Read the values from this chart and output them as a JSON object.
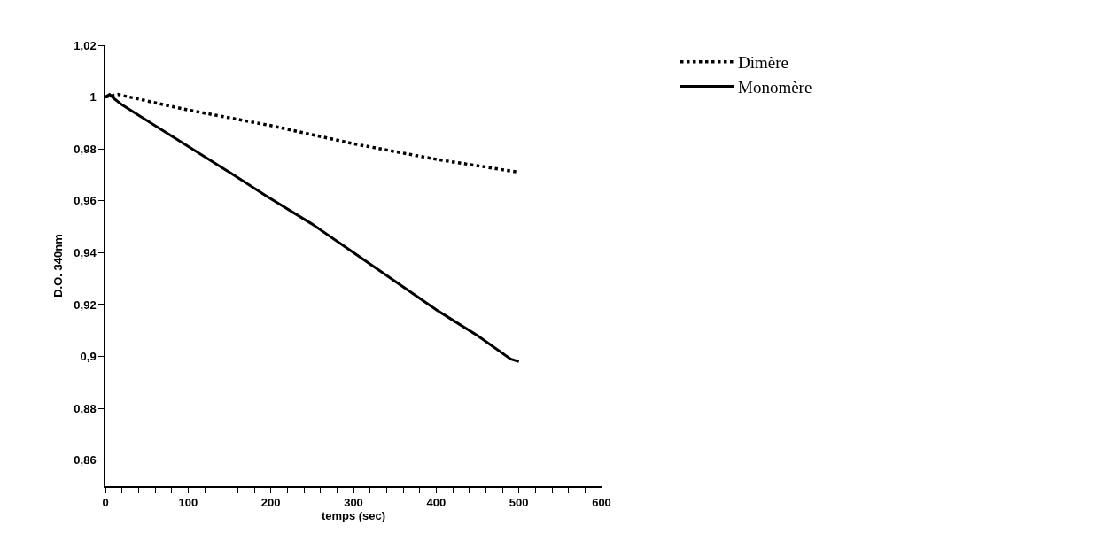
{
  "chart_data": {
    "type": "line",
    "xlabel": "temps (sec)",
    "ylabel": "D.O. 340nm",
    "xlim": [
      0,
      600
    ],
    "ylim": [
      0.85,
      1.02
    ],
    "xticks": [
      0,
      {
        "value": 20,
        "label": null
      },
      {
        "value": 40,
        "label": null
      },
      {
        "value": 60,
        "label": null
      },
      {
        "value": 80,
        "label": null
      },
      100,
      {
        "value": 120,
        "label": null
      },
      {
        "value": 140,
        "label": null
      },
      {
        "value": 160,
        "label": null
      },
      {
        "value": 180,
        "label": null
      },
      200,
      {
        "value": 220,
        "label": null
      },
      {
        "value": 240,
        "label": null
      },
      {
        "value": 260,
        "label": null
      },
      {
        "value": 280,
        "label": null
      },
      300,
      {
        "value": 320,
        "label": null
      },
      {
        "value": 340,
        "label": null
      },
      {
        "value": 360,
        "label": null
      },
      {
        "value": 380,
        "label": null
      },
      400,
      {
        "value": 420,
        "label": null
      },
      {
        "value": 440,
        "label": null
      },
      {
        "value": 460,
        "label": null
      },
      {
        "value": 480,
        "label": null
      },
      500,
      {
        "value": 520,
        "label": null
      },
      {
        "value": 540,
        "label": null
      },
      {
        "value": 560,
        "label": null
      },
      {
        "value": 580,
        "label": null
      },
      600
    ],
    "yticks": [
      {
        "value": 0.86,
        "label": "0,86"
      },
      {
        "value": 0.88,
        "label": "0,88"
      },
      {
        "value": 0.9,
        "label": "0,9"
      },
      {
        "value": 0.92,
        "label": "0,92"
      },
      {
        "value": 0.94,
        "label": "0,94"
      },
      {
        "value": 0.96,
        "label": "0,96"
      },
      {
        "value": 0.98,
        "label": "0,98"
      },
      {
        "value": 1,
        "label": "1"
      },
      {
        "value": 1.02,
        "label": "1,02"
      }
    ],
    "legend": "top right",
    "marker": "none",
    "series": [
      {
        "name": "Dimère",
        "color": "#000000",
        "line_style": "dotted",
        "x": [
          0,
          15,
          100,
          200,
          300,
          400,
          500
        ],
        "values": [
          1.0,
          1.001,
          0.995,
          0.989,
          0.982,
          0.976,
          0.971
        ]
      },
      {
        "name": "Monomère",
        "color": "#000000",
        "line_style": "solid",
        "x": [
          0,
          5,
          10,
          20,
          50,
          100,
          150,
          194,
          250,
          300,
          350,
          400,
          450,
          490,
          500
        ],
        "values": [
          1.0,
          1.001,
          0.9995,
          0.997,
          0.991,
          0.981,
          0.971,
          0.962,
          0.951,
          0.94,
          0.929,
          0.918,
          0.908,
          0.899,
          0.898
        ]
      }
    ]
  }
}
